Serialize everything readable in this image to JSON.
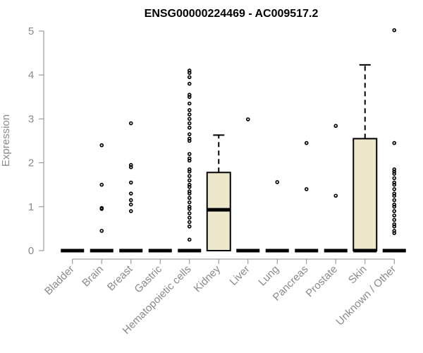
{
  "chart_data": {
    "type": "boxplot",
    "title": "ENSG00000224469 - AC009517.2",
    "ylabel": "Expression",
    "xlabel": "",
    "ylim": [
      0,
      5
    ],
    "yticks": [
      0,
      1,
      2,
      3,
      4,
      5
    ],
    "colors": {
      "box_fill": "#ede7cc",
      "axis": "#8a8a8a",
      "stroke": "#000000"
    },
    "categories": [
      "Bladder",
      "Brain",
      "Breast",
      "Gastric",
      "Hematopoietic cells",
      "Kidney",
      "Liver",
      "Lung",
      "Pancreas",
      "Prostate",
      "Skin",
      "Unknown / Other"
    ],
    "boxes": [
      {
        "q1": 0,
        "median": 0,
        "q3": 0,
        "whisker_low": 0,
        "whisker_high": 0,
        "outliers": []
      },
      {
        "q1": 0,
        "median": 0,
        "q3": 0,
        "whisker_low": 0,
        "whisker_high": 0,
        "outliers": [
          0.45,
          0.95,
          0.97,
          1.5,
          2.4
        ]
      },
      {
        "q1": 0,
        "median": 0,
        "q3": 0,
        "whisker_low": 0,
        "whisker_high": 0,
        "outliers": [
          0.9,
          1.05,
          1.15,
          1.3,
          1.55,
          1.9,
          1.95,
          2.9
        ]
      },
      {
        "q1": 0,
        "median": 0,
        "q3": 0,
        "whisker_low": 0,
        "whisker_high": 0,
        "outliers": []
      },
      {
        "q1": 0,
        "median": 0,
        "q3": 0,
        "whisker_low": 0,
        "whisker_high": 0,
        "outliers": [
          0.25,
          0.55,
          0.65,
          0.75,
          0.85,
          0.95,
          1.0,
          1.1,
          1.2,
          1.3,
          1.35,
          1.45,
          1.5,
          1.6,
          1.7,
          1.8,
          1.85,
          2.05,
          2.1,
          2.2,
          2.5,
          2.55,
          2.65,
          2.8,
          2.9,
          3.0,
          3.1,
          3.2,
          3.35,
          3.5,
          3.55,
          3.8,
          3.95,
          4.05,
          4.1
        ]
      },
      {
        "q1": 0,
        "median": 0.93,
        "q3": 1.78,
        "whisker_low": 0,
        "whisker_high": 2.63,
        "outliers": []
      },
      {
        "q1": 0,
        "median": 0,
        "q3": 0,
        "whisker_low": 0,
        "whisker_high": 0,
        "outliers": [
          2.99
        ]
      },
      {
        "q1": 0,
        "median": 0,
        "q3": 0,
        "whisker_low": 0,
        "whisker_high": 0,
        "outliers": [
          1.56
        ]
      },
      {
        "q1": 0,
        "median": 0,
        "q3": 0,
        "whisker_low": 0,
        "whisker_high": 0,
        "outliers": [
          1.4,
          2.45
        ]
      },
      {
        "q1": 0,
        "median": 0,
        "q3": 0,
        "whisker_low": 0,
        "whisker_high": 0,
        "outliers": [
          1.25,
          2.84
        ]
      },
      {
        "q1": 0,
        "median": 0,
        "q3": 2.55,
        "whisker_low": 0,
        "whisker_high": 4.23,
        "outliers": []
      },
      {
        "q1": 0,
        "median": 0,
        "q3": 0,
        "whisker_low": 0,
        "whisker_high": 0,
        "outliers": [
          0.4,
          0.45,
          0.55,
          0.6,
          0.7,
          0.8,
          0.9,
          1.0,
          1.05,
          1.15,
          1.25,
          1.3,
          1.4,
          1.5,
          1.55,
          1.65,
          1.75,
          1.8,
          1.85,
          2.45,
          5.02
        ]
      }
    ]
  }
}
